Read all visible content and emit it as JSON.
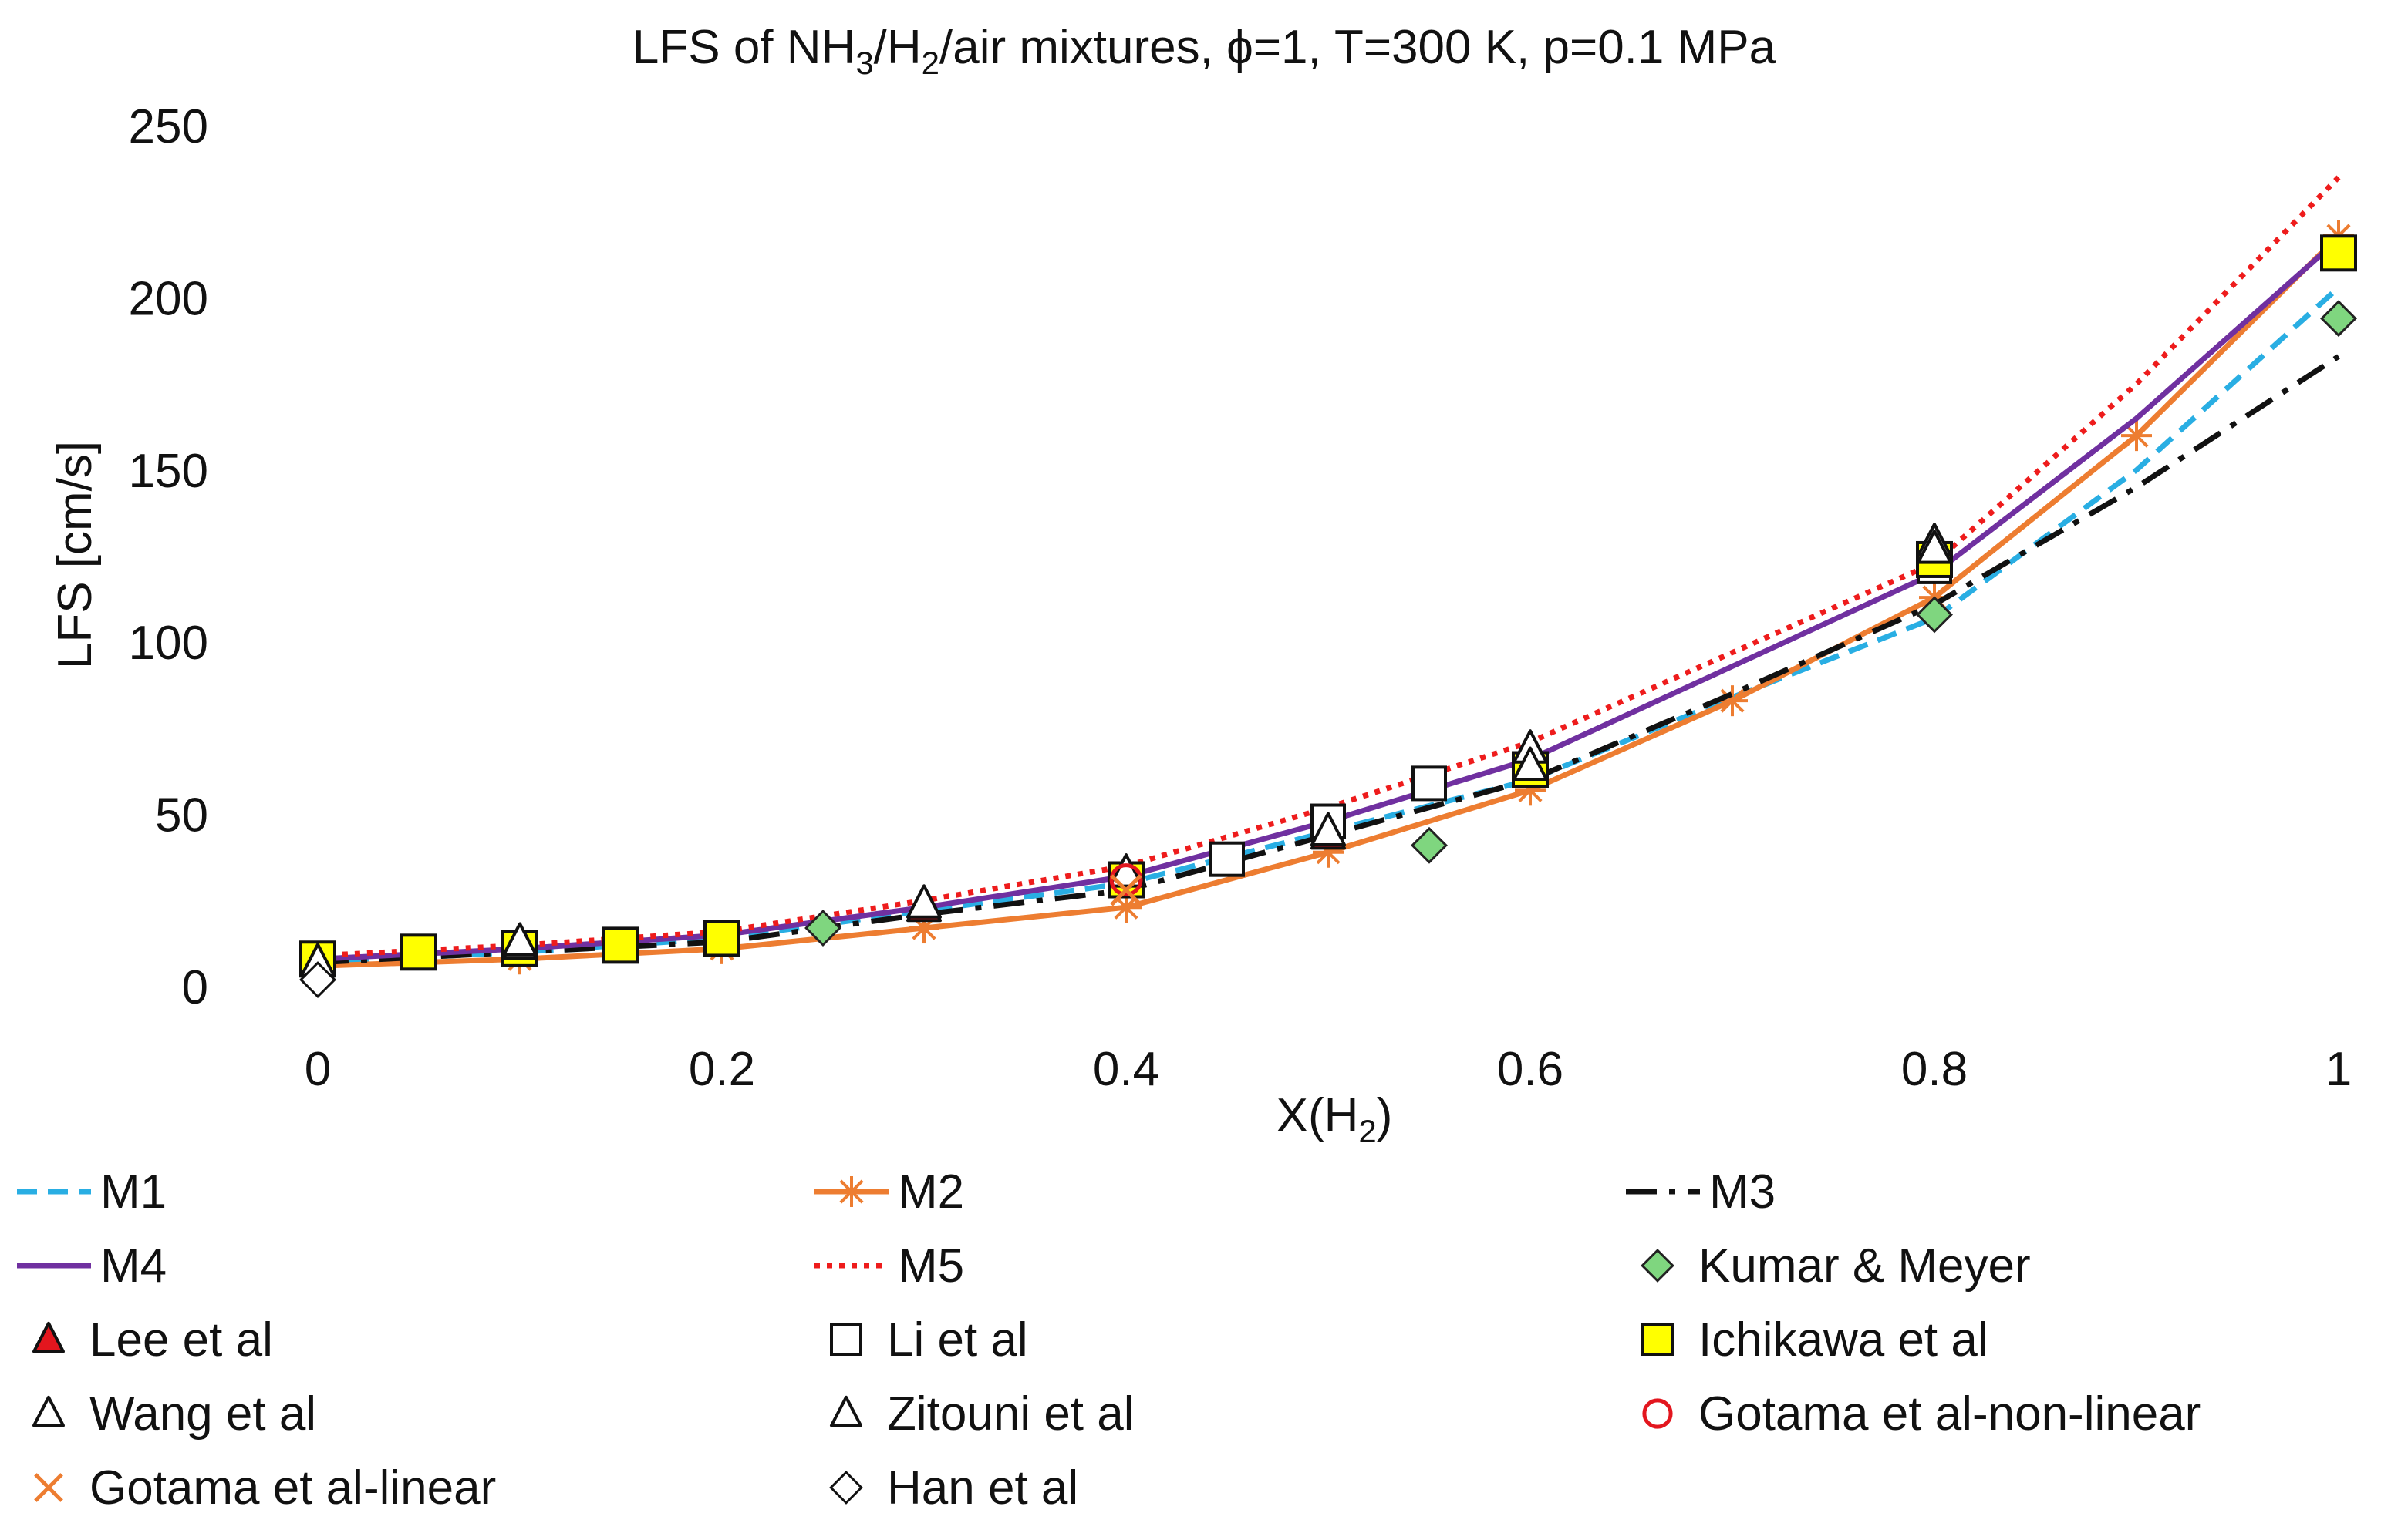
{
  "chart_data": {
    "type": "line",
    "title_parts": [
      "LFS of NH",
      "3",
      "/H",
      "2",
      "/air mixtures, ϕ=1, T=300 K, p=0.1 MPa"
    ],
    "xlabel_parts": [
      "X(H",
      "2",
      ")"
    ],
    "ylabel": "LFS [cm/s]",
    "xlim": [
      0,
      1
    ],
    "ylim": [
      0,
      250
    ],
    "x_ticks": [
      "0",
      "0.2",
      "0.4",
      "0.6",
      "0.8",
      "1"
    ],
    "y_ticks": [
      "0",
      "50",
      "100",
      "150",
      "200",
      "250"
    ],
    "grid": false,
    "legend_position": "bottom",
    "series": [
      {
        "name": "M1",
        "kind": "line",
        "color": "#29aee3",
        "dash": "dash",
        "marker": "none",
        "x": [
          0,
          0.1,
          0.2,
          0.3,
          0.4,
          0.5,
          0.6,
          0.7,
          0.8,
          0.9,
          1
        ],
        "y": [
          7,
          10,
          14,
          22,
          30,
          45,
          60,
          84,
          107,
          150,
          203
        ]
      },
      {
        "name": "M2",
        "kind": "line",
        "color": "#ed7d31",
        "dash": "solid",
        "marker": "asterisk",
        "x": [
          0,
          0.1,
          0.2,
          0.3,
          0.4,
          0.5,
          0.6,
          0.7,
          0.8,
          0.9,
          1
        ],
        "y": [
          6,
          8,
          11,
          17,
          23,
          39,
          57,
          83,
          113,
          160,
          218
        ]
      },
      {
        "name": "M3",
        "kind": "line",
        "color": "#111111",
        "dash": "dashdot",
        "marker": "none",
        "x": [
          0,
          0.1,
          0.2,
          0.3,
          0.4,
          0.5,
          0.6,
          0.7,
          0.8,
          0.9,
          1
        ],
        "y": [
          7,
          10,
          13,
          21,
          28,
          44,
          60,
          85,
          111,
          145,
          183
        ]
      },
      {
        "name": "M4",
        "kind": "line",
        "color": "#7030a0",
        "dash": "solid",
        "marker": "none",
        "x": [
          0,
          0.1,
          0.2,
          0.3,
          0.4,
          0.5,
          0.6,
          0.7,
          0.8,
          0.9,
          1
        ],
        "y": [
          8,
          11,
          15,
          23,
          32,
          48,
          66,
          93,
          120,
          165,
          217
        ]
      },
      {
        "name": "M5",
        "kind": "line",
        "color": "#ee1c1c",
        "dash": "dot",
        "marker": "none",
        "x": [
          0,
          0.1,
          0.2,
          0.3,
          0.4,
          0.5,
          0.6,
          0.7,
          0.8,
          0.9,
          1
        ],
        "y": [
          9,
          12,
          16,
          25,
          35,
          52,
          71,
          97,
          123,
          175,
          235
        ]
      },
      {
        "name": "Kumar & Meyer",
        "kind": "marker",
        "marker": "diamond",
        "fill": "#7fd67f",
        "stroke": "#222222",
        "x": [
          0.25,
          0.55,
          0.8,
          1
        ],
        "y": [
          17,
          41,
          108,
          194
        ]
      },
      {
        "name": "Lee et al",
        "kind": "marker",
        "marker": "triangle",
        "fill": "#e3161e",
        "stroke": "#111111",
        "x": [
          0.3,
          0.5
        ],
        "y": [
          23,
          44
        ]
      },
      {
        "name": "Li et al",
        "kind": "marker",
        "marker": "square",
        "fill": "#ffffff",
        "stroke": "#111111",
        "x": [
          0.45,
          0.5,
          0.55,
          0.8
        ],
        "y": [
          37,
          48,
          59,
          122
        ]
      },
      {
        "name": "Ichikawa et al",
        "kind": "marker",
        "marker": "square",
        "fill": "#ffff00",
        "stroke": "#111111",
        "x": [
          0,
          0.05,
          0.1,
          0.15,
          0.2,
          0.4,
          0.6,
          0.8,
          1
        ],
        "y": [
          8,
          10,
          11,
          12,
          14,
          31,
          63,
          124,
          213
        ]
      },
      {
        "name": "Wang et al",
        "kind": "marker",
        "marker": "triangle",
        "fill": "#ffffff",
        "stroke": "#111111",
        "x": [
          0,
          0.1,
          0.4,
          0.6,
          0.8
        ],
        "y": [
          7,
          12,
          33,
          69,
          129
        ]
      },
      {
        "name": "Zitouni et al",
        "kind": "marker",
        "marker": "triangle",
        "fill": "#ffffff",
        "stroke": "#111111",
        "x": [
          0.1,
          0.3,
          0.5,
          0.6,
          0.8
        ],
        "y": [
          13,
          24,
          45,
          64,
          127
        ]
      },
      {
        "name": "Gotama et al-non-linear",
        "kind": "marker",
        "marker": "circle",
        "fill": "none",
        "stroke": "#e3161e",
        "x": [
          0.4
        ],
        "y": [
          31
        ]
      },
      {
        "name": "Gotama et al-linear",
        "kind": "marker",
        "marker": "cross",
        "fill": "none",
        "stroke": "#ed7d31",
        "x": [
          0.4
        ],
        "y": [
          28
        ]
      },
      {
        "name": "Han et al",
        "kind": "marker",
        "marker": "diamond",
        "fill": "#ffffff",
        "stroke": "#111111",
        "x": [
          0
        ],
        "y": [
          2
        ]
      }
    ]
  }
}
